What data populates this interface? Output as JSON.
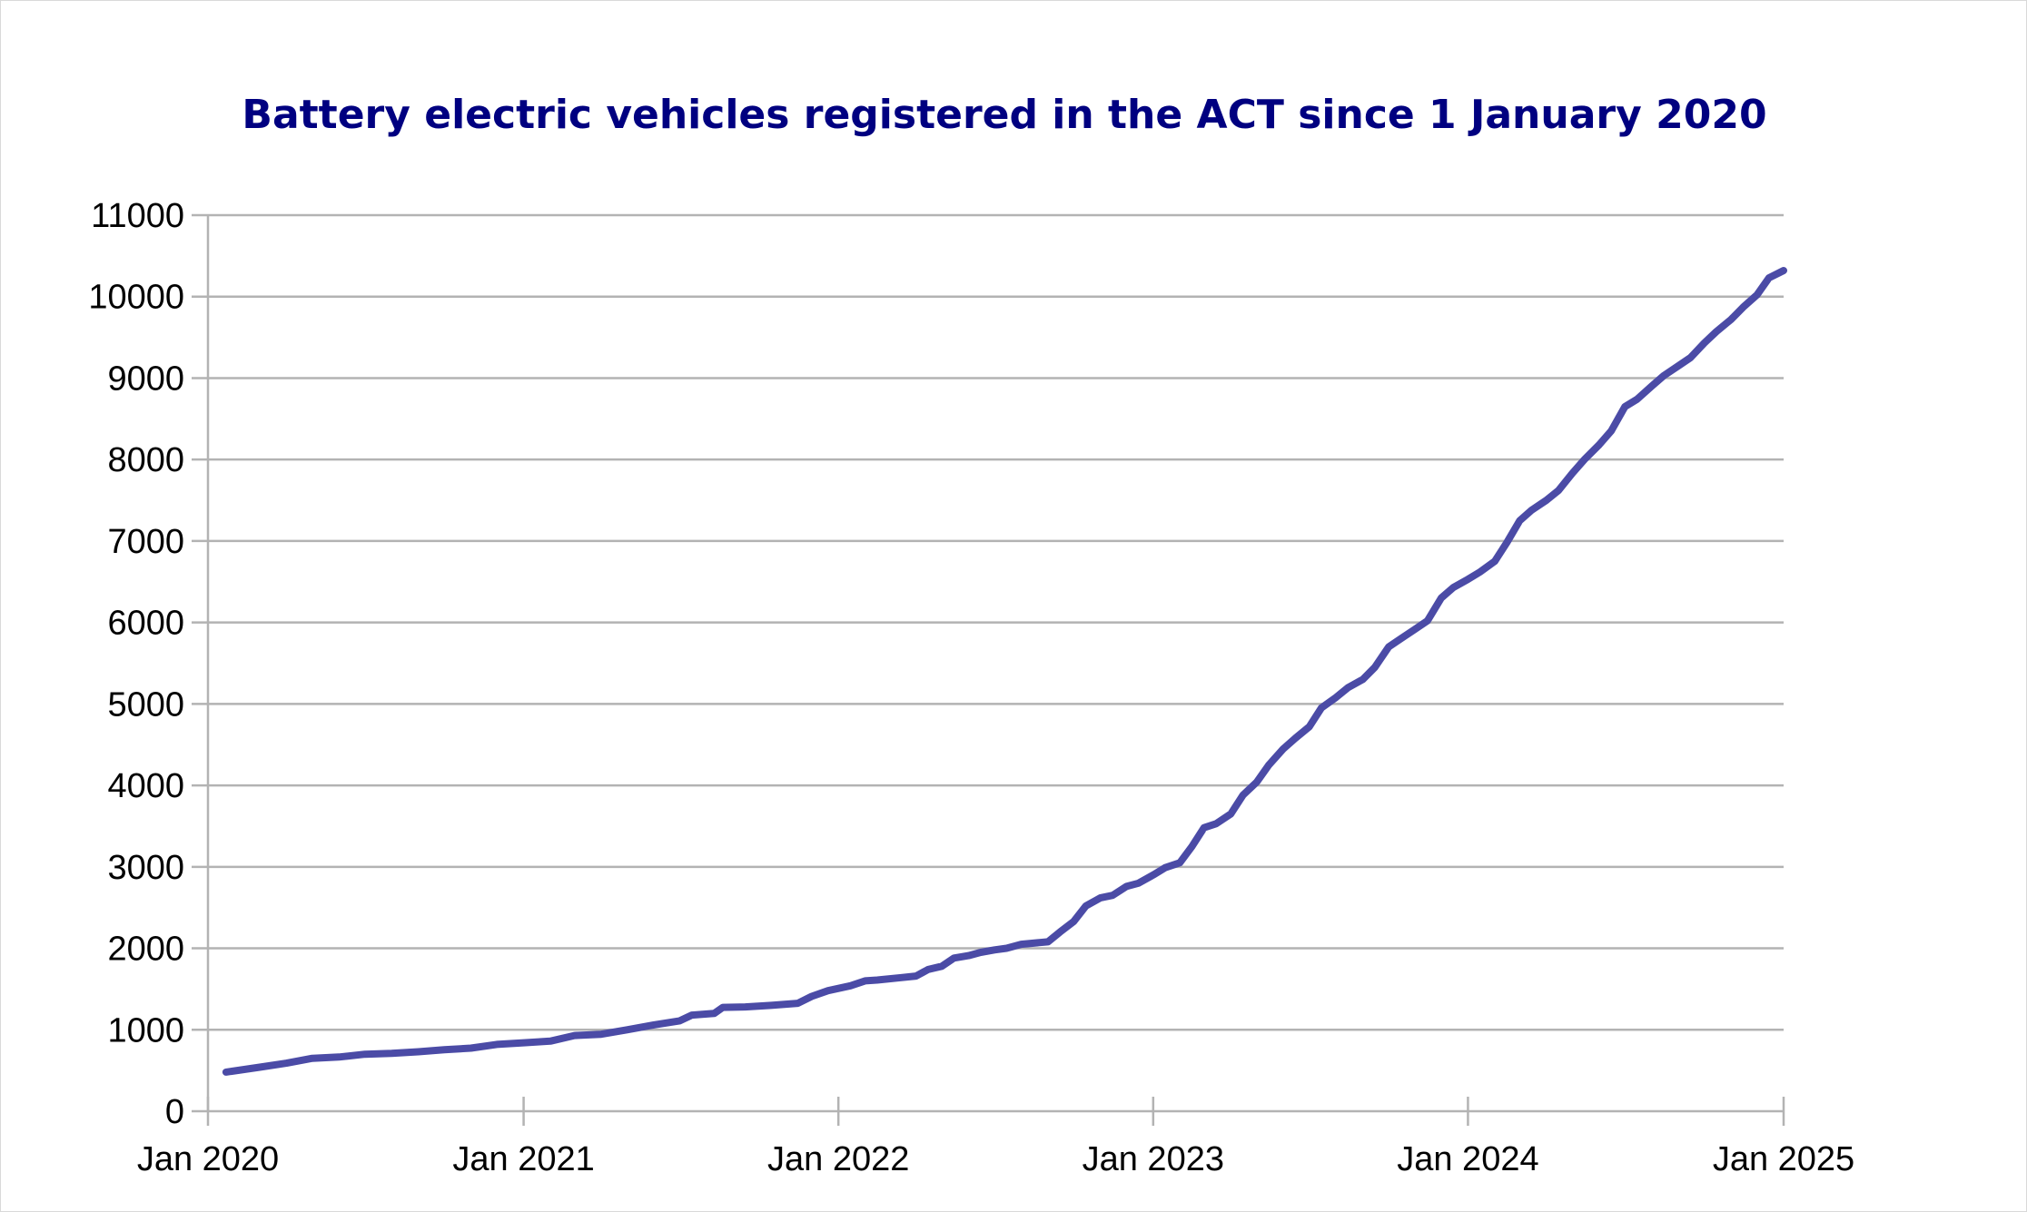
{
  "chart_data": {
    "type": "line",
    "title": "Battery electric vehicles registered in the ACT since 1 January 2020",
    "xlabel": "",
    "ylabel": "",
    "ylim": [
      0,
      11000
    ],
    "yticks": [
      "0",
      "1000",
      "2000",
      "3000",
      "4000",
      "5000",
      "6000",
      "7000",
      "8000",
      "9000",
      "10000",
      "11000"
    ],
    "xlim": [
      "2020-01-01",
      "2025-01-01"
    ],
    "xticks": [
      {
        "date": "2020-01-01",
        "label": "Jan 2020"
      },
      {
        "date": "2021-01-01",
        "label": "Jan 2021"
      },
      {
        "date": "2022-01-01",
        "label": "Jan 2022"
      },
      {
        "date": "2023-01-01",
        "label": "Jan 2023"
      },
      {
        "date": "2024-01-01",
        "label": "Jan 2024"
      },
      {
        "date": "2025-01-01",
        "label": "Jan 2025"
      }
    ],
    "grid": true,
    "legend": "none",
    "series": [
      {
        "color": "#4b4ba6",
        "points": [
          [
            "2020-01-22",
            480
          ],
          [
            "2020-03-01",
            540
          ],
          [
            "2020-04-01",
            590
          ],
          [
            "2020-05-01",
            650
          ],
          [
            "2020-06-01",
            665
          ],
          [
            "2020-07-01",
            700
          ],
          [
            "2020-08-01",
            710
          ],
          [
            "2020-09-01",
            730
          ],
          [
            "2020-10-01",
            755
          ],
          [
            "2020-11-01",
            775
          ],
          [
            "2020-12-01",
            820
          ],
          [
            "2021-01-01",
            840
          ],
          [
            "2021-02-01",
            860
          ],
          [
            "2021-03-01",
            930
          ],
          [
            "2021-04-01",
            945
          ],
          [
            "2021-05-01",
            1000
          ],
          [
            "2021-06-01",
            1060
          ],
          [
            "2021-07-01",
            1110
          ],
          [
            "2021-07-15",
            1180
          ],
          [
            "2021-08-10",
            1200
          ],
          [
            "2021-08-20",
            1275
          ],
          [
            "2021-09-15",
            1280
          ],
          [
            "2021-10-15",
            1300
          ],
          [
            "2021-11-15",
            1325
          ],
          [
            "2021-12-01",
            1410
          ],
          [
            "2021-12-20",
            1480
          ],
          [
            "2022-01-15",
            1540
          ],
          [
            "2022-02-01",
            1600
          ],
          [
            "2022-02-15",
            1610
          ],
          [
            "2022-03-15",
            1640
          ],
          [
            "2022-04-01",
            1660
          ],
          [
            "2022-04-15",
            1740
          ],
          [
            "2022-05-01",
            1780
          ],
          [
            "2022-05-15",
            1880
          ],
          [
            "2022-06-01",
            1910
          ],
          [
            "2022-06-15",
            1950
          ],
          [
            "2022-07-01",
            1980
          ],
          [
            "2022-07-15",
            2000
          ],
          [
            "2022-08-01",
            2050
          ],
          [
            "2022-09-01",
            2080
          ],
          [
            "2022-09-15",
            2200
          ],
          [
            "2022-10-01",
            2330
          ],
          [
            "2022-10-15",
            2520
          ],
          [
            "2022-11-01",
            2620
          ],
          [
            "2022-11-15",
            2650
          ],
          [
            "2022-12-01",
            2760
          ],
          [
            "2022-12-15",
            2800
          ],
          [
            "2023-01-01",
            2900
          ],
          [
            "2023-01-15",
            2990
          ],
          [
            "2023-02-01",
            3050
          ],
          [
            "2023-02-15",
            3250
          ],
          [
            "2023-03-01",
            3480
          ],
          [
            "2023-03-15",
            3530
          ],
          [
            "2023-04-01",
            3650
          ],
          [
            "2023-04-15",
            3880
          ],
          [
            "2023-05-01",
            4040
          ],
          [
            "2023-05-15",
            4250
          ],
          [
            "2023-06-01",
            4450
          ],
          [
            "2023-06-15",
            4580
          ],
          [
            "2023-07-01",
            4720
          ],
          [
            "2023-07-15",
            4950
          ],
          [
            "2023-08-01",
            5080
          ],
          [
            "2023-08-15",
            5200
          ],
          [
            "2023-09-01",
            5300
          ],
          [
            "2023-09-15",
            5450
          ],
          [
            "2023-10-01",
            5700
          ],
          [
            "2023-10-15",
            5800
          ],
          [
            "2023-11-01",
            5920
          ],
          [
            "2023-11-15",
            6020
          ],
          [
            "2023-12-01",
            6300
          ],
          [
            "2023-12-15",
            6430
          ],
          [
            "2024-01-01",
            6530
          ],
          [
            "2024-01-15",
            6620
          ],
          [
            "2024-02-01",
            6750
          ],
          [
            "2024-02-15",
            6980
          ],
          [
            "2024-03-01",
            7250
          ],
          [
            "2024-03-15",
            7380
          ],
          [
            "2024-04-01",
            7500
          ],
          [
            "2024-04-15",
            7620
          ],
          [
            "2024-05-01",
            7830
          ],
          [
            "2024-05-15",
            8000
          ],
          [
            "2024-06-01",
            8180
          ],
          [
            "2024-06-15",
            8350
          ],
          [
            "2024-07-01",
            8650
          ],
          [
            "2024-07-15",
            8740
          ],
          [
            "2024-08-01",
            8900
          ],
          [
            "2024-08-15",
            9030
          ],
          [
            "2024-09-01",
            9150
          ],
          [
            "2024-09-15",
            9250
          ],
          [
            "2024-10-01",
            9430
          ],
          [
            "2024-10-15",
            9570
          ],
          [
            "2024-11-01",
            9720
          ],
          [
            "2024-11-15",
            9870
          ],
          [
            "2024-12-01",
            10020
          ],
          [
            "2024-12-15",
            10230
          ],
          [
            "2025-01-01",
            10320
          ]
        ]
      }
    ]
  }
}
